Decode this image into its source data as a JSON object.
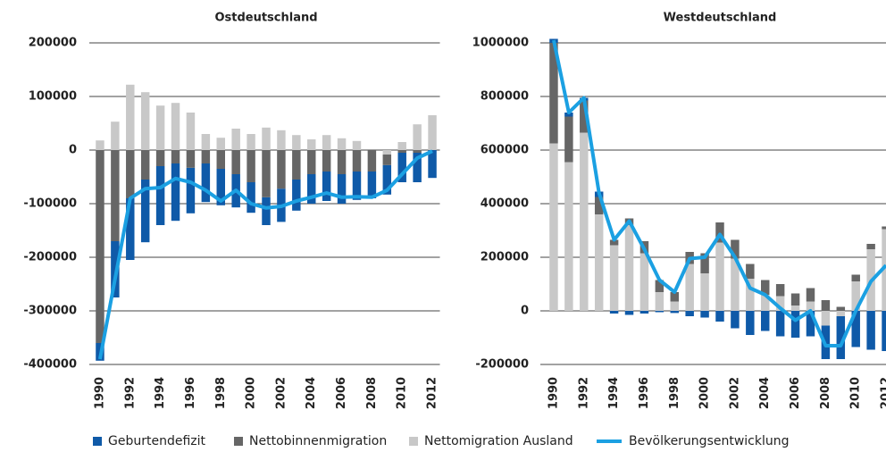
{
  "chart_data": [
    {
      "type": "combo",
      "title": "Ostdeutschland",
      "x": [
        1990,
        1991,
        1992,
        1993,
        1994,
        1995,
        1996,
        1997,
        1998,
        1999,
        2000,
        2001,
        2002,
        2003,
        2004,
        2005,
        2006,
        2007,
        2008,
        2009,
        2010,
        2011,
        2012
      ],
      "xlim": [
        1989.5,
        2012.5
      ],
      "xticks": [
        1990,
        1992,
        1994,
        1996,
        1998,
        2000,
        2002,
        2004,
        2006,
        2008,
        2010,
        2012
      ],
      "ylim": [
        -400000,
        200000
      ],
      "yticks": [
        200000,
        100000,
        0,
        -100000,
        -200000,
        -300000,
        -400000
      ],
      "grid": true,
      "series": [
        {
          "name": "Geburtendefizit",
          "type": "bar",
          "color": "#0f5aa8",
          "values": [
            -33000,
            -105000,
            -115000,
            -117000,
            -110000,
            -107000,
            -85000,
            -72000,
            -68000,
            -62000,
            -57000,
            -52000,
            -62000,
            -58000,
            -55000,
            -55000,
            -55000,
            -53000,
            -50000,
            -55000,
            -55000,
            -55000,
            -52000
          ]
        },
        {
          "name": "Nettobinnenmigration",
          "type": "bar",
          "color": "#666666",
          "values": [
            -360000,
            -170000,
            -90000,
            -55000,
            -30000,
            -25000,
            -33000,
            -25000,
            -35000,
            -45000,
            -60000,
            -88000,
            -72000,
            -55000,
            -45000,
            -40000,
            -45000,
            -40000,
            -40000,
            -20000,
            -5000,
            -5000,
            0
          ]
        },
        {
          "name": "Nettomigration Ausland",
          "type": "bar",
          "color": "#c8c8c8",
          "values": [
            18000,
            53000,
            122000,
            108000,
            83000,
            88000,
            70000,
            30000,
            23000,
            40000,
            30000,
            42000,
            37000,
            28000,
            20000,
            28000,
            22000,
            17000,
            0,
            -8000,
            15000,
            48000,
            65000
          ]
        },
        {
          "name": "Bevölkerungsentwicklung",
          "type": "line",
          "color": "#1ba0e2",
          "values": [
            -390000,
            -240000,
            -90000,
            -72000,
            -70000,
            -53000,
            -60000,
            -75000,
            -95000,
            -75000,
            -100000,
            -108000,
            -105000,
            -95000,
            -88000,
            -80000,
            -88000,
            -87000,
            -88000,
            -75000,
            -45000,
            -15000,
            -2000
          ]
        }
      ]
    },
    {
      "type": "combo",
      "title": "Westdeutschland",
      "x": [
        1990,
        1991,
        1992,
        1993,
        1994,
        1995,
        1996,
        1997,
        1998,
        1999,
        2000,
        2001,
        2002,
        2003,
        2004,
        2005,
        2006,
        2007,
        2008,
        2009,
        2010,
        2011,
        2012
      ],
      "xlim": [
        1989.5,
        2012.5
      ],
      "xticks": [
        1990,
        1992,
        1994,
        1996,
        1998,
        2000,
        2002,
        2004,
        2006,
        2008,
        2010,
        2012
      ],
      "ylim": [
        -200000,
        1000000
      ],
      "yticks": [
        1000000,
        800000,
        600000,
        400000,
        200000,
        0,
        -200000
      ],
      "grid": true,
      "series": [
        {
          "name": "Geburtendefizit",
          "type": "bar",
          "color": "#0f5aa8",
          "values": [
            15000,
            15000,
            10000,
            20000,
            -10000,
            -15000,
            -10000,
            -5000,
            -8000,
            -20000,
            -25000,
            -40000,
            -65000,
            -90000,
            -75000,
            -95000,
            -100000,
            -95000,
            -125000,
            -160000,
            -135000,
            -145000,
            -150000
          ]
        },
        {
          "name": "Nettobinnenmigration",
          "type": "bar",
          "color": "#666666",
          "values": [
            375000,
            170000,
            120000,
            65000,
            20000,
            25000,
            45000,
            45000,
            35000,
            45000,
            75000,
            75000,
            70000,
            55000,
            55000,
            45000,
            45000,
            50000,
            40000,
            15000,
            25000,
            20000,
            10000
          ]
        },
        {
          "name": "Nettomigration Ausland",
          "type": "bar",
          "color": "#c8c8c8",
          "values": [
            625000,
            555000,
            665000,
            360000,
            245000,
            320000,
            215000,
            70000,
            35000,
            175000,
            140000,
            255000,
            195000,
            120000,
            60000,
            55000,
            20000,
            35000,
            -55000,
            -20000,
            110000,
            230000,
            305000
          ]
        },
        {
          "name": "Bevölkerungsentwicklung",
          "type": "line",
          "color": "#1ba0e2",
          "values": [
            1010000,
            740000,
            795000,
            440000,
            265000,
            335000,
            230000,
            115000,
            70000,
            195000,
            200000,
            285000,
            200000,
            85000,
            60000,
            10000,
            -35000,
            0,
            -130000,
            -130000,
            0,
            110000,
            170000
          ]
        }
      ]
    }
  ]
}
